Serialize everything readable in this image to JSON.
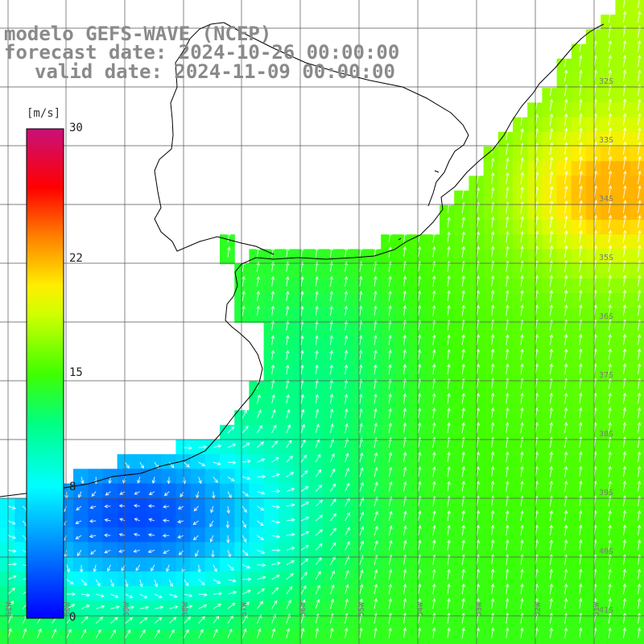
{
  "titles": {
    "model": "modelo GEFS-WAVE (NCEP)",
    "forecast": "forecast date: 2024-10-26 00:00:00",
    "valid": "valid date: 2024-11-09 00:00:00"
  },
  "colorbar": {
    "unit": "[m/s]",
    "ticks": [
      {
        "label": "30",
        "value": 30
      },
      {
        "label": "22",
        "value": 22
      },
      {
        "label": "15",
        "value": 15
      },
      {
        "label": "8",
        "value": 8
      },
      {
        "label": "0",
        "value": 0
      }
    ],
    "min": 0,
    "max": 30
  },
  "lat_labels": [
    "32S",
    "33S",
    "34S",
    "35S",
    "36S",
    "37S",
    "38S",
    "39S",
    "40S",
    "41S"
  ],
  "lon_labels": [
    "61W",
    "60W",
    "59W",
    "58W",
    "57W",
    "56W",
    "55W",
    "54W",
    "53W",
    "52W",
    "51W"
  ],
  "colors": {
    "land": "#ffffff",
    "grid": "#555555",
    "coast": "#000000",
    "arrow": "#ffffff",
    "title": "#8a8a8a"
  }
}
